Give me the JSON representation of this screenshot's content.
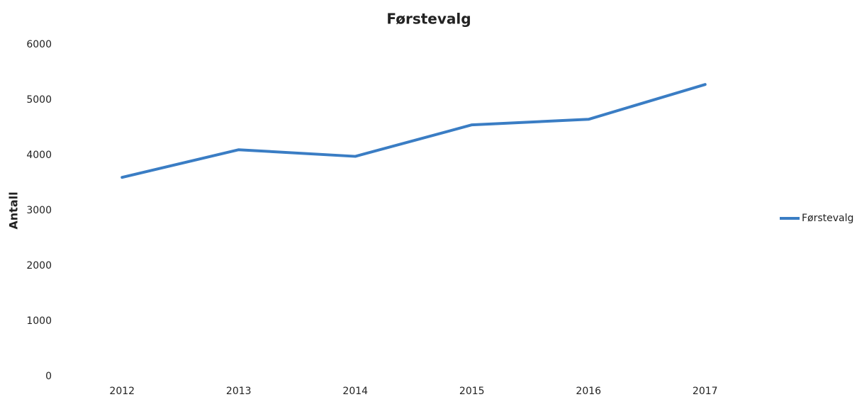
{
  "chart_data": {
    "type": "line",
    "title": "Førstevalg",
    "y_label": "Antall",
    "categories": [
      "2012",
      "2013",
      "2014",
      "2015",
      "2016",
      "2017"
    ],
    "series": [
      {
        "name": "Førstevalg",
        "color": "#3a7dc4",
        "values": [
          3600,
          4100,
          3980,
          4550,
          4650,
          5280
        ]
      }
    ],
    "ylim": [
      0,
      6000
    ],
    "yticks": [
      0,
      1000,
      2000,
      3000,
      4000,
      5000,
      6000
    ],
    "grid": false,
    "legend": "right"
  }
}
